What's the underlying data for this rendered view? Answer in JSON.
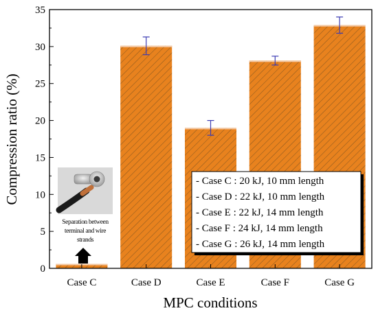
{
  "chart_data": {
    "type": "bar",
    "title": "",
    "xlabel": "MPC conditions",
    "ylabel": "Compression ratio (%)",
    "categories": [
      "Case C",
      "Case D",
      "Case E",
      "Case F",
      "Case G"
    ],
    "values": [
      0.6,
      30.1,
      19.0,
      28.1,
      32.9
    ],
    "errors": [
      0,
      1.2,
      1.0,
      0.6,
      1.1
    ],
    "ylim": [
      0,
      35
    ],
    "yticks": [
      0,
      5,
      10,
      15,
      20,
      25,
      30,
      35
    ],
    "grid": false,
    "bar_color": "#e8821e",
    "hatch_color": "#6b4a1f",
    "error_color": "#3b3bb3",
    "legend_position": "center-right",
    "legend": [
      "- Case C : 20 kJ, 10 mm length",
      "- Case D : 22 kJ, 10 mm length",
      "- Case E : 22 kJ, 14 mm length",
      "- Case F : 24 kJ, 14 mm length",
      "- Case G : 26 kJ, 14 mm length"
    ],
    "annotation": {
      "lines": [
        "Separation between",
        "terminal and wire",
        "strands"
      ],
      "icon": "wire-terminal-photo",
      "arrow": "up-arrow-icon"
    }
  }
}
